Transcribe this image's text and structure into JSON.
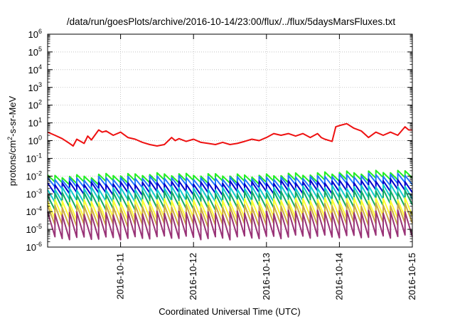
{
  "chart_data": {
    "type": "line",
    "title": "/data/run/goesPlots/archive/2016-10-14/23:00/flux/../flux/5daysMarsFluxes.txt",
    "xlabel": "Coordinated Universal Time (UTC)",
    "ylabel": {
      "base": "protons/cm",
      "sup": "2",
      "rest": "-s-sr-MeV"
    },
    "y_scale": "log",
    "ylim": [
      1e-06,
      1000000.0
    ],
    "xlim": [
      0,
      5
    ],
    "x_unit": "days from 2016-10-10 00:00 UTC",
    "x_ticks": [
      {
        "value": 1,
        "label": "2016-10-11"
      },
      {
        "value": 2,
        "label": "2016-10-12"
      },
      {
        "value": 3,
        "label": "2016-10-13"
      },
      {
        "value": 4,
        "label": "2016-10-14"
      },
      {
        "value": 5,
        "label": "2016-10-15"
      }
    ],
    "y_ticks": [
      {
        "exp": -6,
        "label": "10",
        "sup": "-6"
      },
      {
        "exp": -5,
        "label": "10",
        "sup": "-5"
      },
      {
        "exp": -4,
        "label": "10",
        "sup": "-4"
      },
      {
        "exp": -3,
        "label": "10",
        "sup": "-3"
      },
      {
        "exp": -2,
        "label": "10",
        "sup": "-2"
      },
      {
        "exp": -1,
        "label": "10",
        "sup": "-1"
      },
      {
        "exp": 0,
        "label": "10",
        "sup": "0"
      },
      {
        "exp": 1,
        "label": "10",
        "sup": "1"
      },
      {
        "exp": 2,
        "label": "10",
        "sup": "2"
      },
      {
        "exp": 3,
        "label": "10",
        "sup": "3"
      },
      {
        "exp": 4,
        "label": "10",
        "sup": "4"
      },
      {
        "exp": 5,
        "label": "10",
        "sup": "5"
      },
      {
        "exp": 6,
        "label": "10",
        "sup": "6"
      }
    ],
    "grid": true,
    "legend": "none",
    "series": [
      {
        "color": "#ee1111",
        "x": [
          0,
          0.1,
          0.2,
          0.3,
          0.35,
          0.4,
          0.5,
          0.55,
          0.6,
          0.7,
          0.75,
          0.8,
          0.9,
          1.0,
          1.1,
          1.2,
          1.3,
          1.4,
          1.5,
          1.6,
          1.7,
          1.75,
          1.8,
          1.9,
          2.0,
          2.1,
          2.2,
          2.3,
          2.4,
          2.5,
          2.6,
          2.7,
          2.8,
          2.9,
          3.0,
          3.1,
          3.2,
          3.3,
          3.4,
          3.5,
          3.6,
          3.7,
          3.75,
          3.8,
          3.9,
          3.95,
          4.0,
          4.1,
          4.2,
          4.3,
          4.4,
          4.5,
          4.6,
          4.7,
          4.8,
          4.9,
          4.95,
          5.0
        ],
        "y": [
          3,
          2,
          1.3,
          0.7,
          0.5,
          1.2,
          0.7,
          1.8,
          1.1,
          4,
          3,
          3.5,
          2,
          3,
          1.5,
          1.2,
          0.8,
          0.6,
          0.5,
          0.6,
          1.5,
          1.0,
          1.3,
          0.9,
          1.2,
          0.8,
          0.7,
          0.6,
          0.8,
          0.6,
          0.7,
          0.9,
          1.2,
          1.0,
          1.5,
          2.5,
          2.0,
          2.5,
          1.8,
          2.5,
          1.5,
          2.5,
          1.5,
          1.2,
          0.9,
          6,
          7,
          9,
          5,
          3.5,
          1.5,
          3,
          2,
          3,
          2,
          6,
          4,
          4
        ]
      },
      {
        "color": "#22ee22",
        "baseline": [
          0.01,
          0.012,
          0.013,
          0.012,
          0.011,
          0.013,
          0.016,
          0.018
        ],
        "sawtooth_decay": 0.4
      },
      {
        "color": "#2277ff",
        "baseline": [
          0.007,
          0.008,
          0.009,
          0.008,
          0.008,
          0.009,
          0.011,
          0.012
        ],
        "sawtooth_decay": 0.3
      },
      {
        "color": "#0000cc",
        "baseline": [
          0.004,
          0.004,
          0.0045,
          0.004,
          0.0045,
          0.005,
          0.005,
          0.006
        ],
        "sawtooth_decay": 0.25
      },
      {
        "color": "#11cccc",
        "baseline": [
          0.002,
          0.002,
          0.0022,
          0.002,
          0.0022,
          0.0025,
          0.0025,
          0.003
        ],
        "sawtooth_decay": 0.2
      },
      {
        "color": "#11aa66",
        "baseline": [
          0.001,
          0.001,
          0.0012,
          0.001,
          0.0012,
          0.0013,
          0.0013,
          0.0015
        ],
        "sawtooth_decay": 0.15
      },
      {
        "color": "#ffff33",
        "baseline": [
          0.0004,
          0.0004,
          0.00045,
          0.0004,
          0.00045,
          0.0005,
          0.0005,
          0.0005
        ],
        "sawtooth_decay": 0.1
      },
      {
        "color": "#ccaa44",
        "baseline": [
          0.0002,
          0.0002,
          0.00022,
          0.0002,
          0.00022,
          0.00025,
          0.00025,
          0.00025
        ],
        "sawtooth_decay": 0.08
      },
      {
        "color": "#993377",
        "baseline": [
          8e-05,
          8e-05,
          9e-05,
          8e-05,
          9e-05,
          0.0001,
          0.0001,
          0.0001
        ],
        "sawtooth_decay": 0.04
      }
    ]
  }
}
